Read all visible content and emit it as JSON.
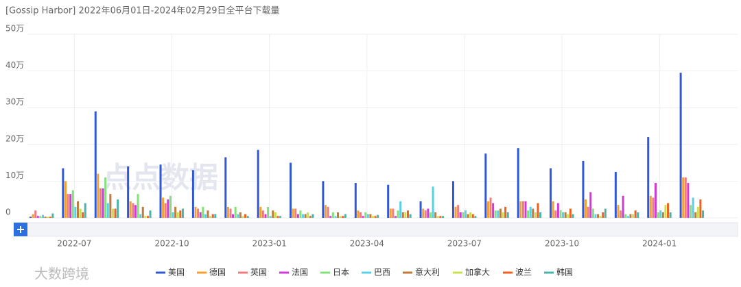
{
  "chart_data": {
    "type": "bar",
    "title": "[Gossip Harbor]  2022年06月01日-2024年02月29日全平台下载量",
    "categories": [
      null,
      "2022-07",
      null,
      null,
      "2022-10",
      null,
      null,
      "2023-01",
      null,
      null,
      "2023-04",
      null,
      null,
      "2023-07",
      null,
      null,
      "2023-10",
      null,
      null,
      "2024-01",
      null
    ],
    "ylim": [
      0,
      50
    ],
    "yticks": [
      0,
      {
        "value": 10,
        "label": "10万"
      },
      {
        "value": 20,
        "label": "20万"
      },
      {
        "value": 30,
        "label": "30万"
      },
      {
        "value": 40,
        "label": "40万"
      },
      {
        "value": 50,
        "label": "50万"
      }
    ],
    "grid": true,
    "legend": "bottom",
    "watermarks": [
      "点点数据",
      "大数跨境"
    ],
    "series": [
      {
        "name": "美国",
        "color": "#3058d6",
        "values": [
          0.3,
          13.5,
          29,
          14,
          14.5,
          13,
          16.5,
          18.5,
          15,
          10,
          9.5,
          9,
          4.5,
          10,
          17.5,
          19,
          13.5,
          15.5,
          12.5,
          22,
          39.5
        ]
      },
      {
        "name": "德国",
        "color": "#f5a030",
        "values": [
          1,
          10,
          12,
          4.5,
          5.5,
          3,
          3,
          3,
          2.5,
          3.5,
          2,
          2.5,
          2.5,
          3,
          4.5,
          4.5,
          4.5,
          5,
          3.5,
          6,
          11
        ]
      },
      {
        "name": "英国",
        "color": "#f07c7c",
        "values": [
          2,
          6.5,
          8,
          4,
          4,
          2.5,
          2.5,
          2,
          2.5,
          3,
          1.5,
          2.5,
          2,
          3.5,
          5.5,
          4.5,
          2,
          3,
          2,
          5.5,
          11
        ]
      },
      {
        "name": "法国",
        "color": "#d23ad8",
        "values": [
          0.5,
          6.5,
          8,
          3.5,
          5,
          1.5,
          1,
          1,
          1,
          0.5,
          0.5,
          0.5,
          2.5,
          1.5,
          4,
          4.5,
          4,
          7,
          6,
          9.5,
          9.5
        ]
      },
      {
        "name": "日本",
        "color": "#84e07c",
        "values": [
          0.5,
          7.5,
          11,
          6.5,
          6,
          3,
          3,
          3,
          2,
          1.5,
          1.5,
          2,
          1.5,
          1.5,
          2,
          2,
          2,
          2.5,
          1,
          1.5,
          3.5
        ]
      },
      {
        "name": "巴西",
        "color": "#5ad0e8",
        "values": [
          0.8,
          3,
          4,
          1,
          1.5,
          1,
          1,
          0.5,
          1,
          0.5,
          1,
          4.5,
          8.5,
          2,
          2,
          3,
          1.5,
          1,
          0.5,
          2,
          5.5
        ]
      },
      {
        "name": "意大利",
        "color": "#c07a3c",
        "values": [
          0.3,
          4.5,
          6.5,
          3,
          3,
          2,
          1.5,
          2,
          1,
          1.5,
          1,
          1.5,
          1.5,
          1,
          2.5,
          2.5,
          1.5,
          1,
          1,
          1.5,
          1.5
        ]
      },
      {
        "name": "加拿大",
        "color": "#c8e050",
        "values": [
          0.3,
          2.5,
          2.5,
          0.5,
          1.5,
          0.5,
          0.5,
          1.5,
          1.5,
          0.5,
          0.5,
          1.5,
          0.5,
          1.5,
          1.5,
          1.5,
          1,
          0.5,
          1,
          3.5,
          3
        ]
      },
      {
        "name": "波兰",
        "color": "#f06020",
        "values": [
          0.3,
          1.5,
          2.5,
          0.5,
          2,
          1,
          1,
          0.5,
          0.5,
          0.5,
          0.5,
          2,
          0.5,
          1,
          3,
          4,
          2.5,
          1.5,
          2,
          4,
          5
        ]
      },
      {
        "name": "韩国",
        "color": "#4ab5a8",
        "values": [
          1.2,
          4,
          5,
          2,
          2.5,
          1,
          0.5,
          0.5,
          1,
          1,
          0.8,
          1,
          0.5,
          0.5,
          1.5,
          1.5,
          1,
          2.5,
          1.5,
          1.5,
          2
        ]
      }
    ]
  }
}
